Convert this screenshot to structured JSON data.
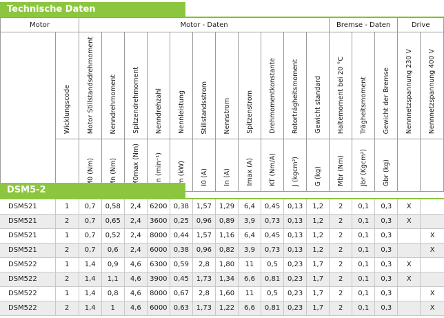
{
  "title": "Technische Daten",
  "groups": {
    "motor": "Motor",
    "motor_daten": "Motor - Daten",
    "bremse_daten": "Bremse - Daten",
    "drive": "Drive"
  },
  "columns": [
    {
      "name": "Wicklungscode",
      "symbol": ""
    },
    {
      "name": "Motor Stillstandsdrehmoment",
      "symbol": "M0 (Nm)"
    },
    {
      "name": "Nenndrehmoment",
      "symbol": "Mn (Nm)"
    },
    {
      "name": "Spitzendrehmoment",
      "symbol": "M0max (Nm)"
    },
    {
      "name": "Nenndrehzahl",
      "symbol": "nn (min⁻¹)"
    },
    {
      "name": "Nennleistung",
      "symbol": "Pn (kW)"
    },
    {
      "name": "Stillstandsstrom",
      "symbol": "I0 (A)"
    },
    {
      "name": "Nennstrom",
      "symbol": "In (A)"
    },
    {
      "name": "Spitzenstrom",
      "symbol": "Imax (A)"
    },
    {
      "name": "Drehmomentkonstante",
      "symbol": "KT (Nm/A)"
    },
    {
      "name": "Rotorträgheitsmoment",
      "symbol": "J (kgcm²)"
    },
    {
      "name": "Gewicht standard",
      "symbol": "G (kg)"
    },
    {
      "name": "Haltemoment bei 20 °C",
      "symbol": "Mbr (Nm)"
    },
    {
      "name": "Trägheitsmoment",
      "symbol": "Jbr (Kgcm²)"
    },
    {
      "name": "Gewicht der Bremse",
      "symbol": "Gbr (kg)"
    },
    {
      "name": "Nennnetzspannung 230 V",
      "symbol": ""
    },
    {
      "name": "Nennnetzspannung 400 V",
      "symbol": ""
    }
  ],
  "group_label": "DSM5-2",
  "rows": [
    [
      "DSM521",
      "1",
      "0,7",
      "0,58",
      "2,4",
      "6200",
      "0,38",
      "1,57",
      "1,29",
      "6,4",
      "0,45",
      "0,13",
      "1,2",
      "2",
      "0,1",
      "0,3",
      "X",
      ""
    ],
    [
      "DSM521",
      "2",
      "0,7",
      "0,65",
      "2,4",
      "3600",
      "0,25",
      "0,96",
      "0,89",
      "3,9",
      "0,73",
      "0,13",
      "1,2",
      "2",
      "0,1",
      "0,3",
      "X",
      ""
    ],
    [
      "DSM521",
      "1",
      "0,7",
      "0,52",
      "2,4",
      "8000",
      "0,44",
      "1,57",
      "1,16",
      "6,4",
      "0,45",
      "0,13",
      "1,2",
      "2",
      "0,1",
      "0,3",
      "",
      "X"
    ],
    [
      "DSM521",
      "2",
      "0,7",
      "0,6",
      "2,4",
      "6000",
      "0,38",
      "0,96",
      "0,82",
      "3,9",
      "0,73",
      "0,13",
      "1,2",
      "2",
      "0,1",
      "0,3",
      "",
      "X"
    ],
    [
      "DSM522",
      "1",
      "1,4",
      "0,9",
      "4,6",
      "6300",
      "0,59",
      "2,8",
      "1,80",
      "11",
      "0,5",
      "0,23",
      "1,7",
      "2",
      "0,1",
      "0,3",
      "X",
      ""
    ],
    [
      "DSM522",
      "2",
      "1,4",
      "1,1",
      "4,6",
      "3900",
      "0,45",
      "1,73",
      "1,34",
      "6,6",
      "0,81",
      "0,23",
      "1,7",
      "2",
      "0,1",
      "0,3",
      "X",
      ""
    ],
    [
      "DSM522",
      "1",
      "1,4",
      "0,8",
      "4,6",
      "8000",
      "0,67",
      "2,8",
      "1,60",
      "11",
      "0,5",
      "0,23",
      "1,7",
      "2",
      "0,1",
      "0,3",
      "",
      "X"
    ],
    [
      "DSM522",
      "2",
      "1,4",
      "1",
      "4,6",
      "6000",
      "0,63",
      "1,73",
      "1,22",
      "6,6",
      "0,81",
      "0,23",
      "1,7",
      "2",
      "0,1",
      "0,3",
      "",
      "X"
    ]
  ],
  "colors": {
    "accent": "#8cc63f",
    "row_alt": "#ececec"
  }
}
